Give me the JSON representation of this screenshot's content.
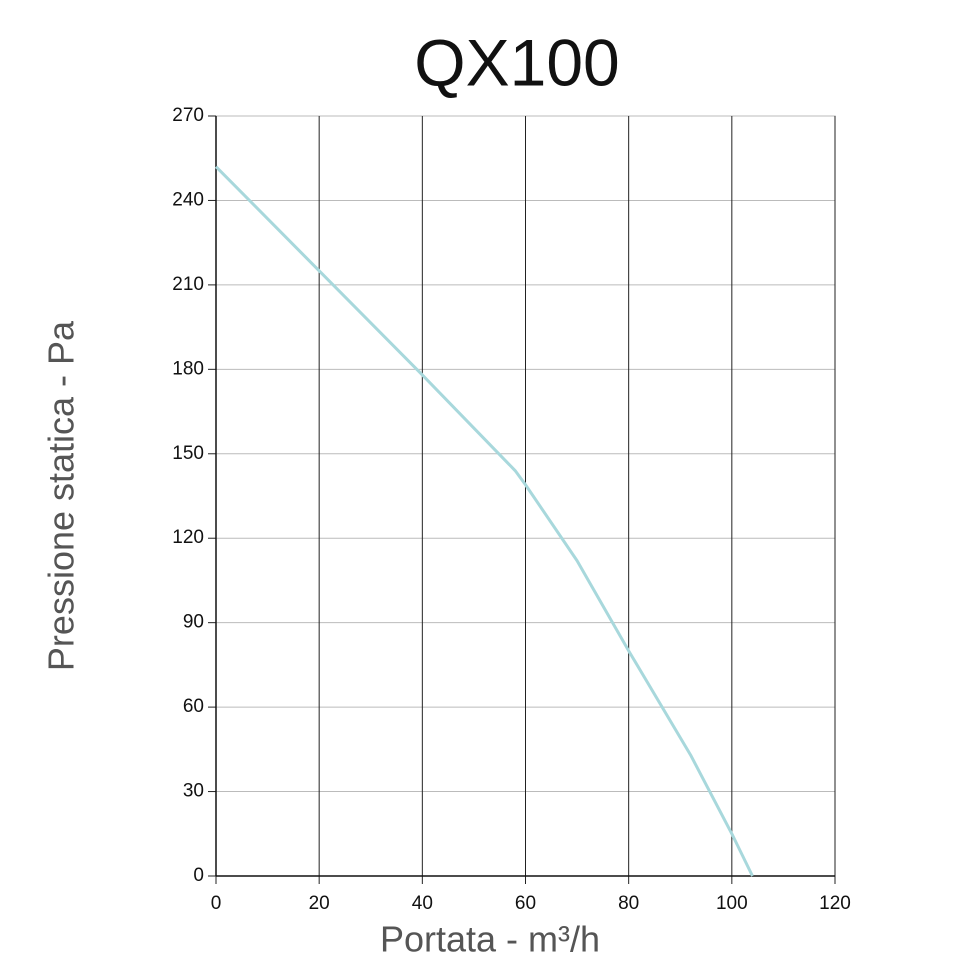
{
  "chart_data": {
    "type": "line",
    "title": "QX100",
    "x_label": "Portata - m³/h",
    "y_label": "Pressione statica - Pa",
    "x": [
      0,
      20,
      40,
      58,
      60,
      70,
      80,
      92,
      100,
      104
    ],
    "values": [
      252,
      215,
      178,
      144,
      139,
      112,
      80,
      43,
      15,
      0
    ],
    "color": "#a8d8dc",
    "xlim": [
      0,
      120
    ],
    "xticks": [
      0,
      20,
      40,
      60,
      80,
      100,
      120
    ],
    "ylim": [
      0,
      270
    ],
    "yticks": [
      0,
      30,
      60,
      90,
      120,
      150,
      180,
      210,
      240,
      270
    ],
    "grid": true,
    "xgrid_color": "#222222",
    "ygrid_color": "#bbbbbb"
  }
}
